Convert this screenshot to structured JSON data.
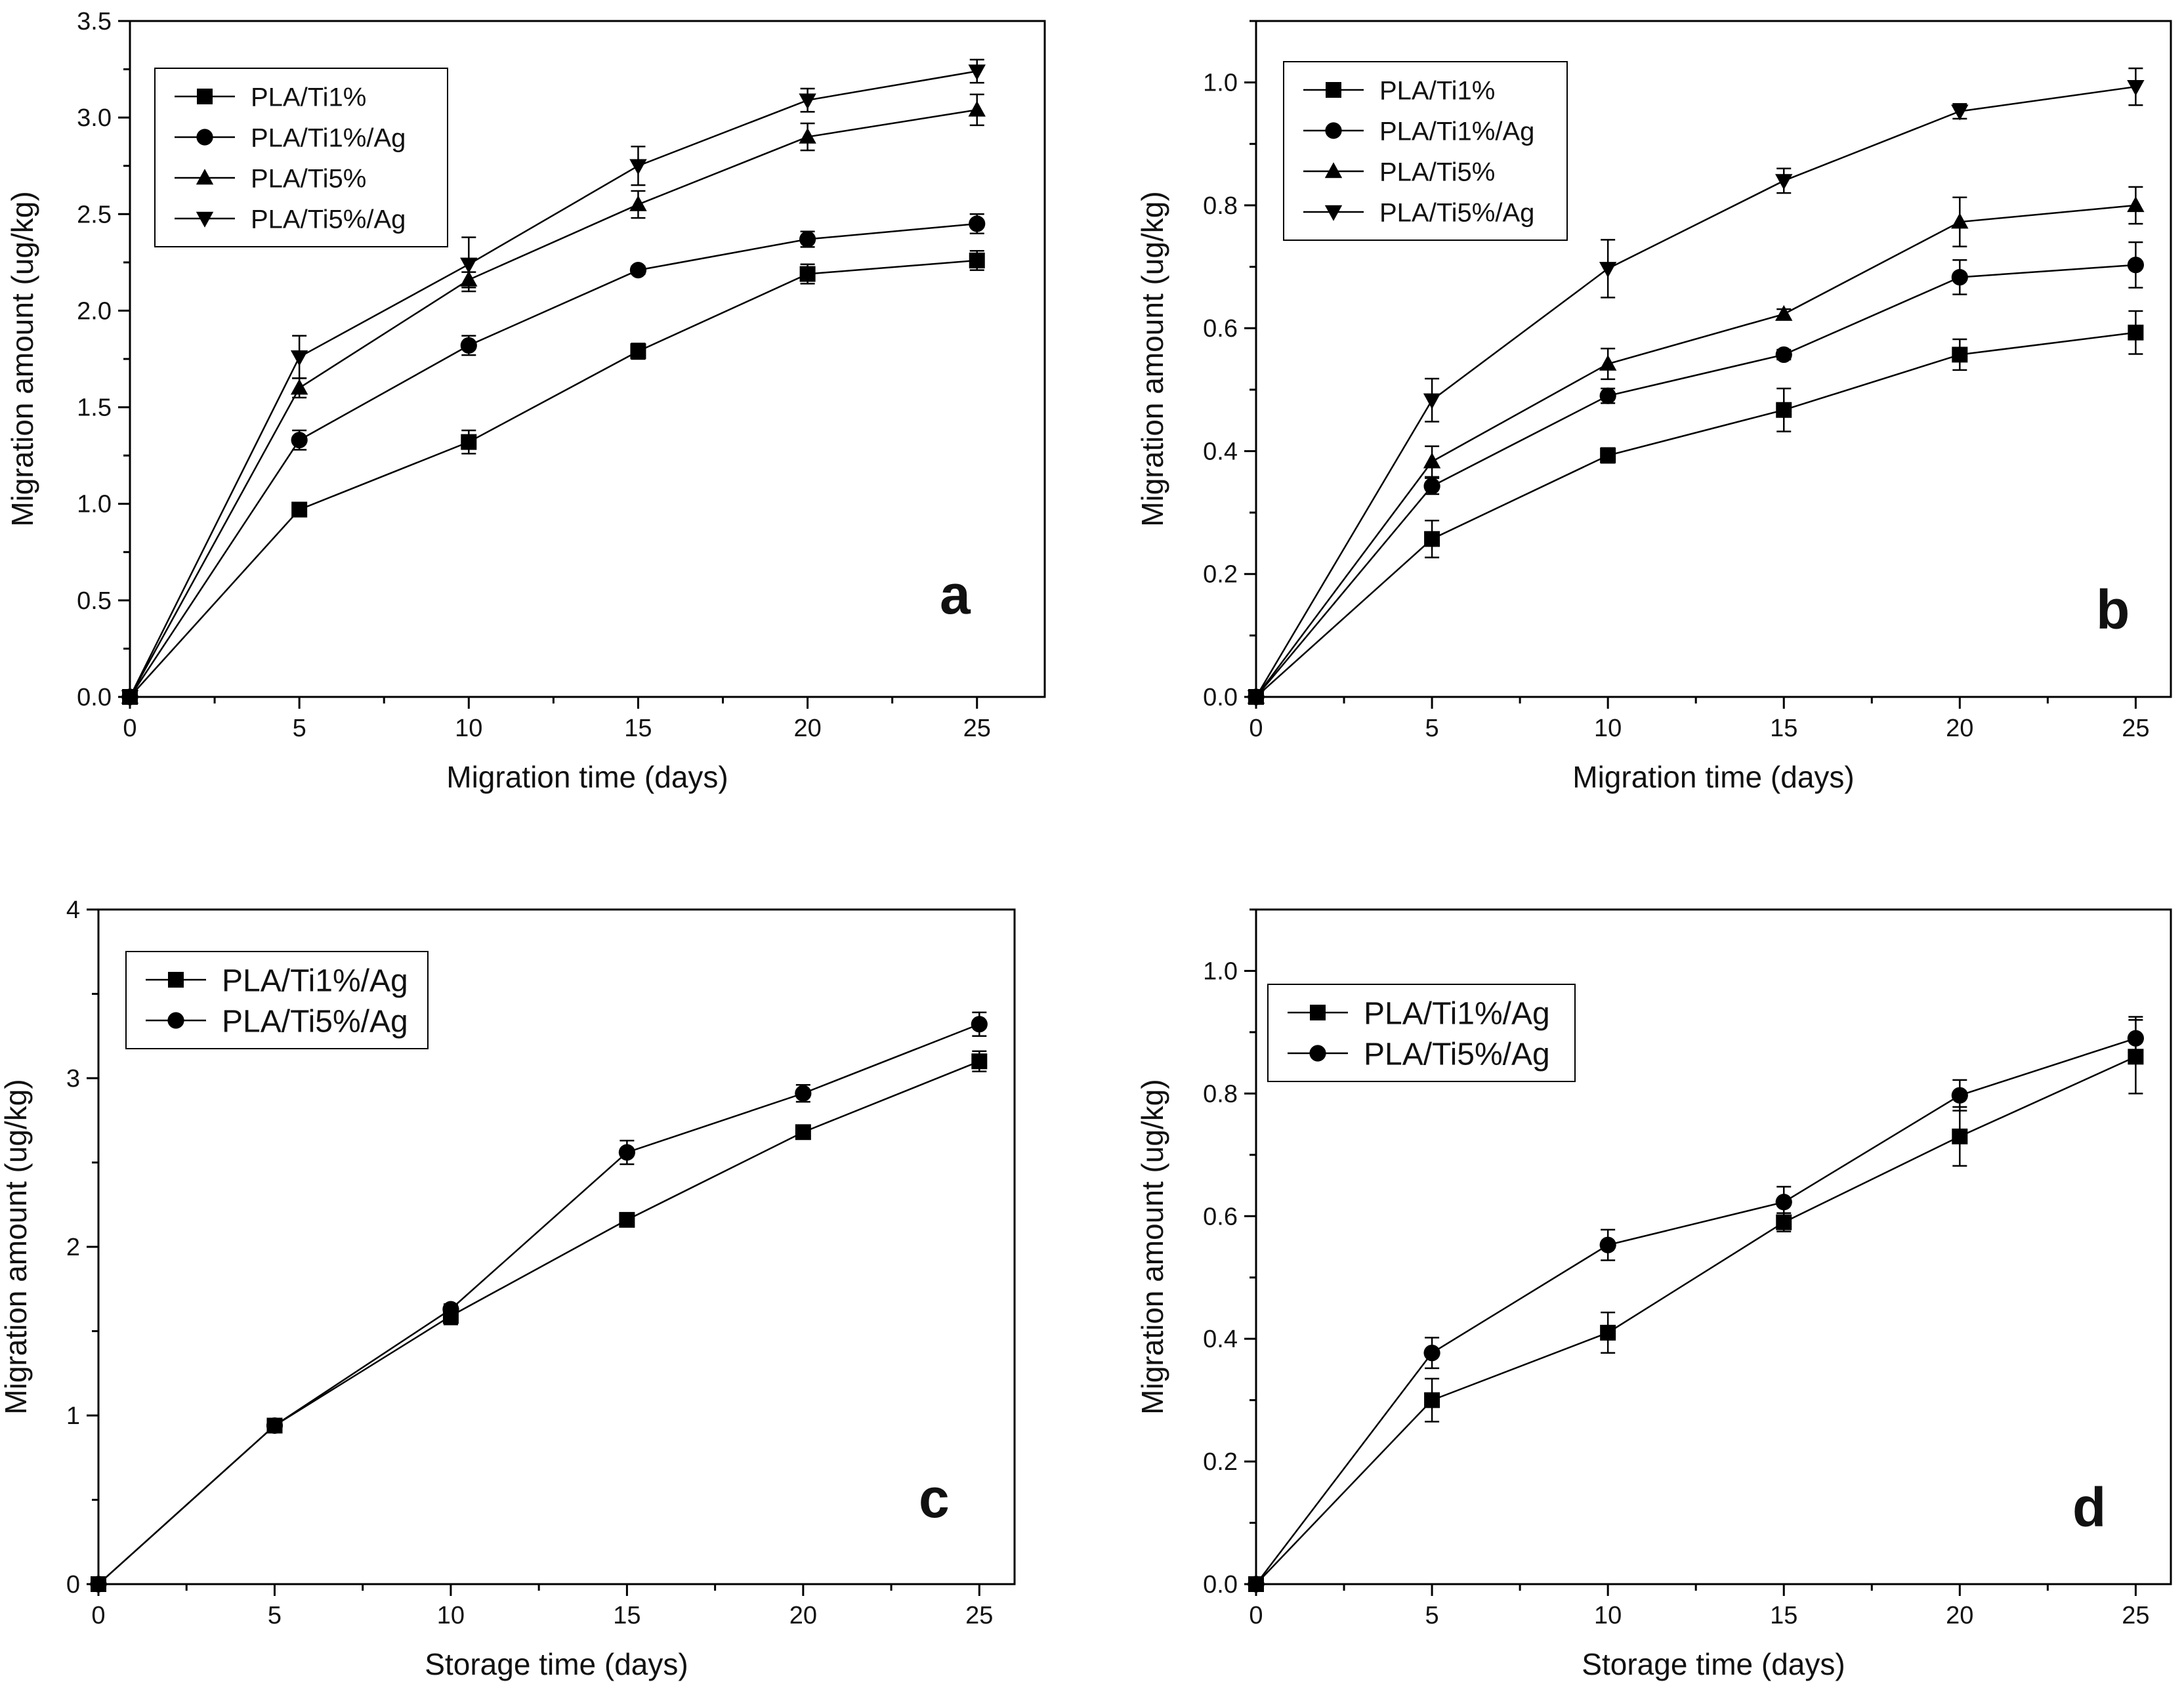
{
  "chart_data": [
    {
      "type": "line",
      "panel_label": "a",
      "xlabel": "Migration time (days)",
      "ylabel": "Migration amount (ug/kg)",
      "xlim": [
        0,
        27
      ],
      "ylim": [
        0,
        3.5
      ],
      "xticks": [
        "0",
        "5",
        "10",
        "15",
        "20",
        "25"
      ],
      "yticks": [
        "0.0",
        "0.5",
        "1.0",
        "1.5",
        "2.0",
        "2.5",
        "3.0",
        "3.5"
      ],
      "x": [
        0,
        5,
        10,
        15,
        20,
        25
      ],
      "legend_position": "top-left",
      "series": [
        {
          "name": "PLA/Ti1%",
          "marker": "square",
          "values": [
            0,
            0.97,
            1.32,
            1.79,
            2.19,
            2.26
          ],
          "errors": [
            0,
            0.02,
            0.06,
            0.04,
            0.05,
            0.05
          ]
        },
        {
          "name": "PLA/Ti1%/Ag",
          "marker": "circle",
          "values": [
            0,
            1.33,
            1.82,
            2.21,
            2.37,
            2.45
          ],
          "errors": [
            0,
            0.05,
            0.05,
            0.02,
            0.04,
            0.05
          ]
        },
        {
          "name": "PLA/Ti5%",
          "marker": "triangle-up",
          "values": [
            0,
            1.6,
            2.16,
            2.55,
            2.9,
            3.04
          ],
          "errors": [
            0,
            0.05,
            0.04,
            0.07,
            0.07,
            0.08
          ]
        },
        {
          "name": "PLA/Ti5%/Ag",
          "marker": "triangle-down",
          "values": [
            0,
            1.76,
            2.24,
            2.75,
            3.09,
            3.24
          ],
          "errors": [
            0,
            0.11,
            0.14,
            0.1,
            0.06,
            0.06
          ]
        }
      ]
    },
    {
      "type": "line",
      "panel_label": "b",
      "xlabel": "Migration time (days)",
      "ylabel": "Migration amount (ug/kg)",
      "xlim": [
        0,
        26
      ],
      "ylim": [
        0,
        1.1
      ],
      "xticks": [
        "0",
        "5",
        "10",
        "15",
        "20",
        "25"
      ],
      "yticks": [
        "0.0",
        "0.2",
        "0.4",
        "0.6",
        "0.8",
        "1.0"
      ],
      "x": [
        0,
        5,
        10,
        15,
        20,
        25
      ],
      "legend_position": "top-left",
      "series": [
        {
          "name": "PLA/Ti1%",
          "marker": "square",
          "values": [
            0,
            0.257,
            0.393,
            0.467,
            0.557,
            0.593
          ],
          "errors": [
            0,
            0.03,
            0.012,
            0.035,
            0.025,
            0.035
          ]
        },
        {
          "name": "PLA/Ti1%/Ag",
          "marker": "circle",
          "values": [
            0,
            0.343,
            0.49,
            0.557,
            0.683,
            0.703
          ],
          "errors": [
            0,
            0.013,
            0.012,
            0.008,
            0.028,
            0.037
          ]
        },
        {
          "name": "PLA/Ti5%",
          "marker": "triangle-up",
          "values": [
            0,
            0.383,
            0.542,
            0.623,
            0.773,
            0.8
          ],
          "errors": [
            0,
            0.025,
            0.025,
            0.008,
            0.04,
            0.03
          ]
        },
        {
          "name": "PLA/Ti5%/Ag",
          "marker": "triangle-down",
          "values": [
            0,
            0.483,
            0.697,
            0.84,
            0.953,
            0.993
          ],
          "errors": [
            0,
            0.035,
            0.047,
            0.02,
            0.012,
            0.03
          ]
        }
      ]
    },
    {
      "type": "line",
      "panel_label": "c",
      "xlabel": "Storage time (days)",
      "ylabel": "Migration amount (ug/kg)",
      "xlim": [
        0,
        26
      ],
      "ylim": [
        0,
        4
      ],
      "xticks": [
        "0",
        "5",
        "10",
        "15",
        "20",
        "25"
      ],
      "yticks": [
        "0",
        "1",
        "2",
        "3",
        "4"
      ],
      "x": [
        0,
        5,
        10,
        15,
        20,
        25
      ],
      "legend_position": "top-left",
      "series": [
        {
          "name": "PLA/Ti1%/Ag",
          "marker": "square",
          "values": [
            0,
            0.94,
            1.59,
            2.16,
            2.68,
            3.1
          ],
          "errors": [
            0,
            0.03,
            0.05,
            0.03,
            0.03,
            0.06
          ]
        },
        {
          "name": "PLA/Ti5%/Ag",
          "marker": "circle",
          "values": [
            0,
            0.94,
            1.63,
            2.56,
            2.91,
            3.32
          ],
          "errors": [
            0,
            0.03,
            0.03,
            0.07,
            0.05,
            0.07
          ]
        }
      ]
    },
    {
      "type": "line",
      "panel_label": "d",
      "xlabel": "Storage time (days)",
      "ylabel": "Migration amount (ug/kg)",
      "xlim": [
        0,
        26
      ],
      "ylim": [
        0,
        1.1
      ],
      "xticks": [
        "0",
        "5",
        "10",
        "15",
        "20",
        "25"
      ],
      "yticks": [
        "0.0",
        "0.2",
        "0.4",
        "0.6",
        "0.8",
        "1.0"
      ],
      "x": [
        0,
        5,
        10,
        15,
        20,
        25
      ],
      "legend_position": "top-left",
      "series": [
        {
          "name": "PLA/Ti1%/Ag",
          "marker": "square",
          "values": [
            0,
            0.3,
            0.41,
            0.59,
            0.73,
            0.86
          ],
          "errors": [
            0,
            0.035,
            0.033,
            0.015,
            0.048,
            0.06
          ]
        },
        {
          "name": "PLA/Ti5%/Ag",
          "marker": "circle",
          "values": [
            0,
            0.377,
            0.553,
            0.623,
            0.797,
            0.89
          ],
          "errors": [
            0,
            0.025,
            0.025,
            0.025,
            0.025,
            0.035
          ]
        }
      ]
    }
  ]
}
